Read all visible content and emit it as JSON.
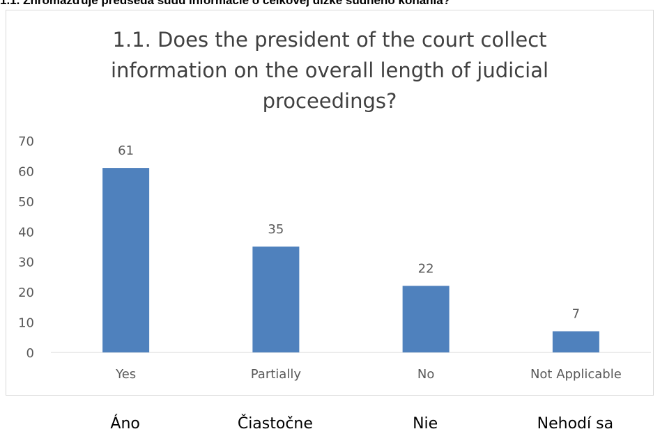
{
  "header": {
    "caption": "1.1. Zhromažďuje predseda súdu informácie o celkovej dĺžke súdneho konania?"
  },
  "chart_data": {
    "type": "bar",
    "title": "1.1. Does the president of the court collect\ninformation on the overall length of judicial\nproceedings?",
    "categories": [
      "Yes",
      "Partially",
      "No",
      "Not Applicable"
    ],
    "values": [
      61,
      35,
      22,
      7
    ],
    "data_labels": [
      "61",
      "35",
      "22",
      "7"
    ],
    "yticks": [
      "0",
      "10",
      "20",
      "30",
      "40",
      "50",
      "60",
      "70"
    ],
    "ylim": [
      0,
      70
    ],
    "xlabel": "",
    "ylabel": "",
    "grid": false,
    "legend": "none",
    "bar_color": "#4f81bd"
  },
  "footer": {
    "translations": [
      "Áno",
      "Čiastočne",
      "Nie",
      "Nehodí sa"
    ]
  }
}
